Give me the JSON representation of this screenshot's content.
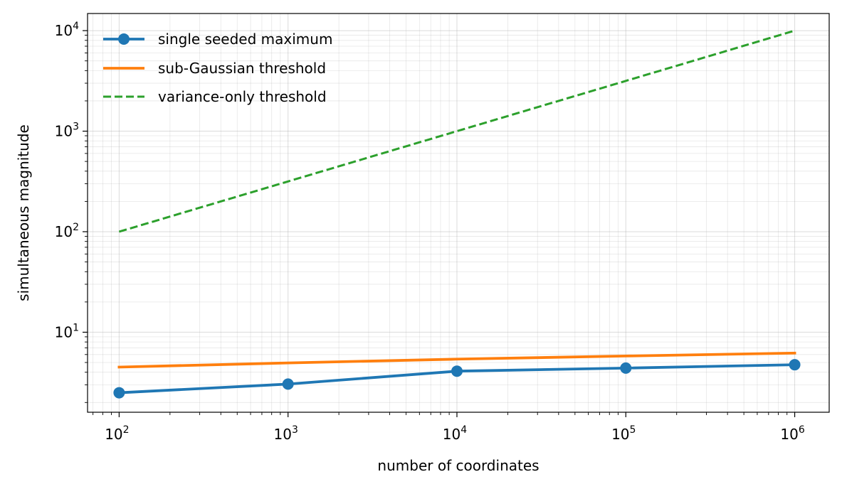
{
  "chart_data": {
    "type": "line",
    "xlabel": "number of coordinates",
    "ylabel": "simultaneous magnitude",
    "xscale": "log",
    "yscale": "log",
    "xlim": [
      65,
      1600000
    ],
    "ylim": [
      1.6,
      14800
    ],
    "grid": true,
    "legend_position": "top-left",
    "x_ticks": [
      {
        "base": "10",
        "exp": "2",
        "value": 100
      },
      {
        "base": "10",
        "exp": "3",
        "value": 1000
      },
      {
        "base": "10",
        "exp": "4",
        "value": 10000
      },
      {
        "base": "10",
        "exp": "5",
        "value": 100000
      },
      {
        "base": "10",
        "exp": "6",
        "value": 1000000
      }
    ],
    "y_ticks": [
      {
        "base": "10",
        "exp": "1",
        "value": 10
      },
      {
        "base": "10",
        "exp": "2",
        "value": 100
      },
      {
        "base": "10",
        "exp": "3",
        "value": 1000
      },
      {
        "base": "10",
        "exp": "4",
        "value": 10000
      }
    ],
    "series": [
      {
        "name": "single seeded maximum",
        "color": "#1f77b4",
        "style": "solid",
        "markers": true,
        "x": [
          100,
          1000,
          10000,
          100000,
          1000000
        ],
        "y": [
          2.5,
          3.05,
          4.1,
          4.4,
          4.75
        ]
      },
      {
        "name": "sub-Gaussian threshold",
        "color": "#ff7f0e",
        "style": "solid",
        "markers": false,
        "x": [
          100,
          1000,
          10000,
          100000,
          1000000
        ],
        "y": [
          4.5,
          4.95,
          5.4,
          5.8,
          6.2
        ]
      },
      {
        "name": "variance-only threshold",
        "color": "#2ca02c",
        "style": "dashed",
        "markers": false,
        "x": [
          100,
          1000,
          10000,
          100000,
          1000000
        ],
        "y": [
          100,
          316.2,
          1000,
          3162.3,
          10000
        ]
      }
    ]
  }
}
